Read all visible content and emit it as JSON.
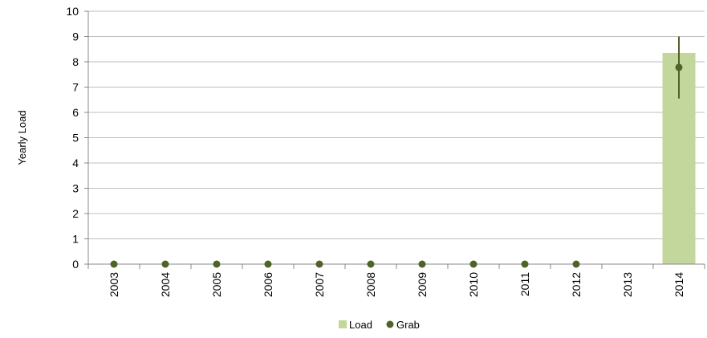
{
  "chart_data": {
    "type": "bar",
    "title": "",
    "xlabel": "",
    "ylabel": "Yearly Load",
    "ylim": [
      0,
      10
    ],
    "yticks": [
      0,
      1,
      2,
      3,
      4,
      5,
      6,
      7,
      8,
      9,
      10
    ],
    "categories": [
      "2003",
      "2004",
      "2005",
      "2006",
      "2007",
      "2008",
      "2009",
      "2010",
      "2011",
      "2012",
      "2013",
      "2014"
    ],
    "grid": true,
    "legend_position": "bottom-center",
    "series": [
      {
        "name": "Load",
        "kind": "bar",
        "color": "#c3d69b",
        "values": [
          null,
          null,
          null,
          null,
          null,
          null,
          null,
          null,
          null,
          null,
          null,
          8.35
        ]
      },
      {
        "name": "Grab",
        "kind": "point",
        "color": "#4f6228",
        "values": [
          0,
          0,
          0,
          0,
          0,
          0,
          0,
          0,
          0,
          0,
          null,
          7.78
        ],
        "error_low": [
          null,
          null,
          null,
          null,
          null,
          null,
          null,
          null,
          null,
          null,
          null,
          6.55
        ],
        "error_high": [
          null,
          null,
          null,
          null,
          null,
          null,
          null,
          null,
          null,
          null,
          null,
          9.0
        ]
      }
    ]
  }
}
